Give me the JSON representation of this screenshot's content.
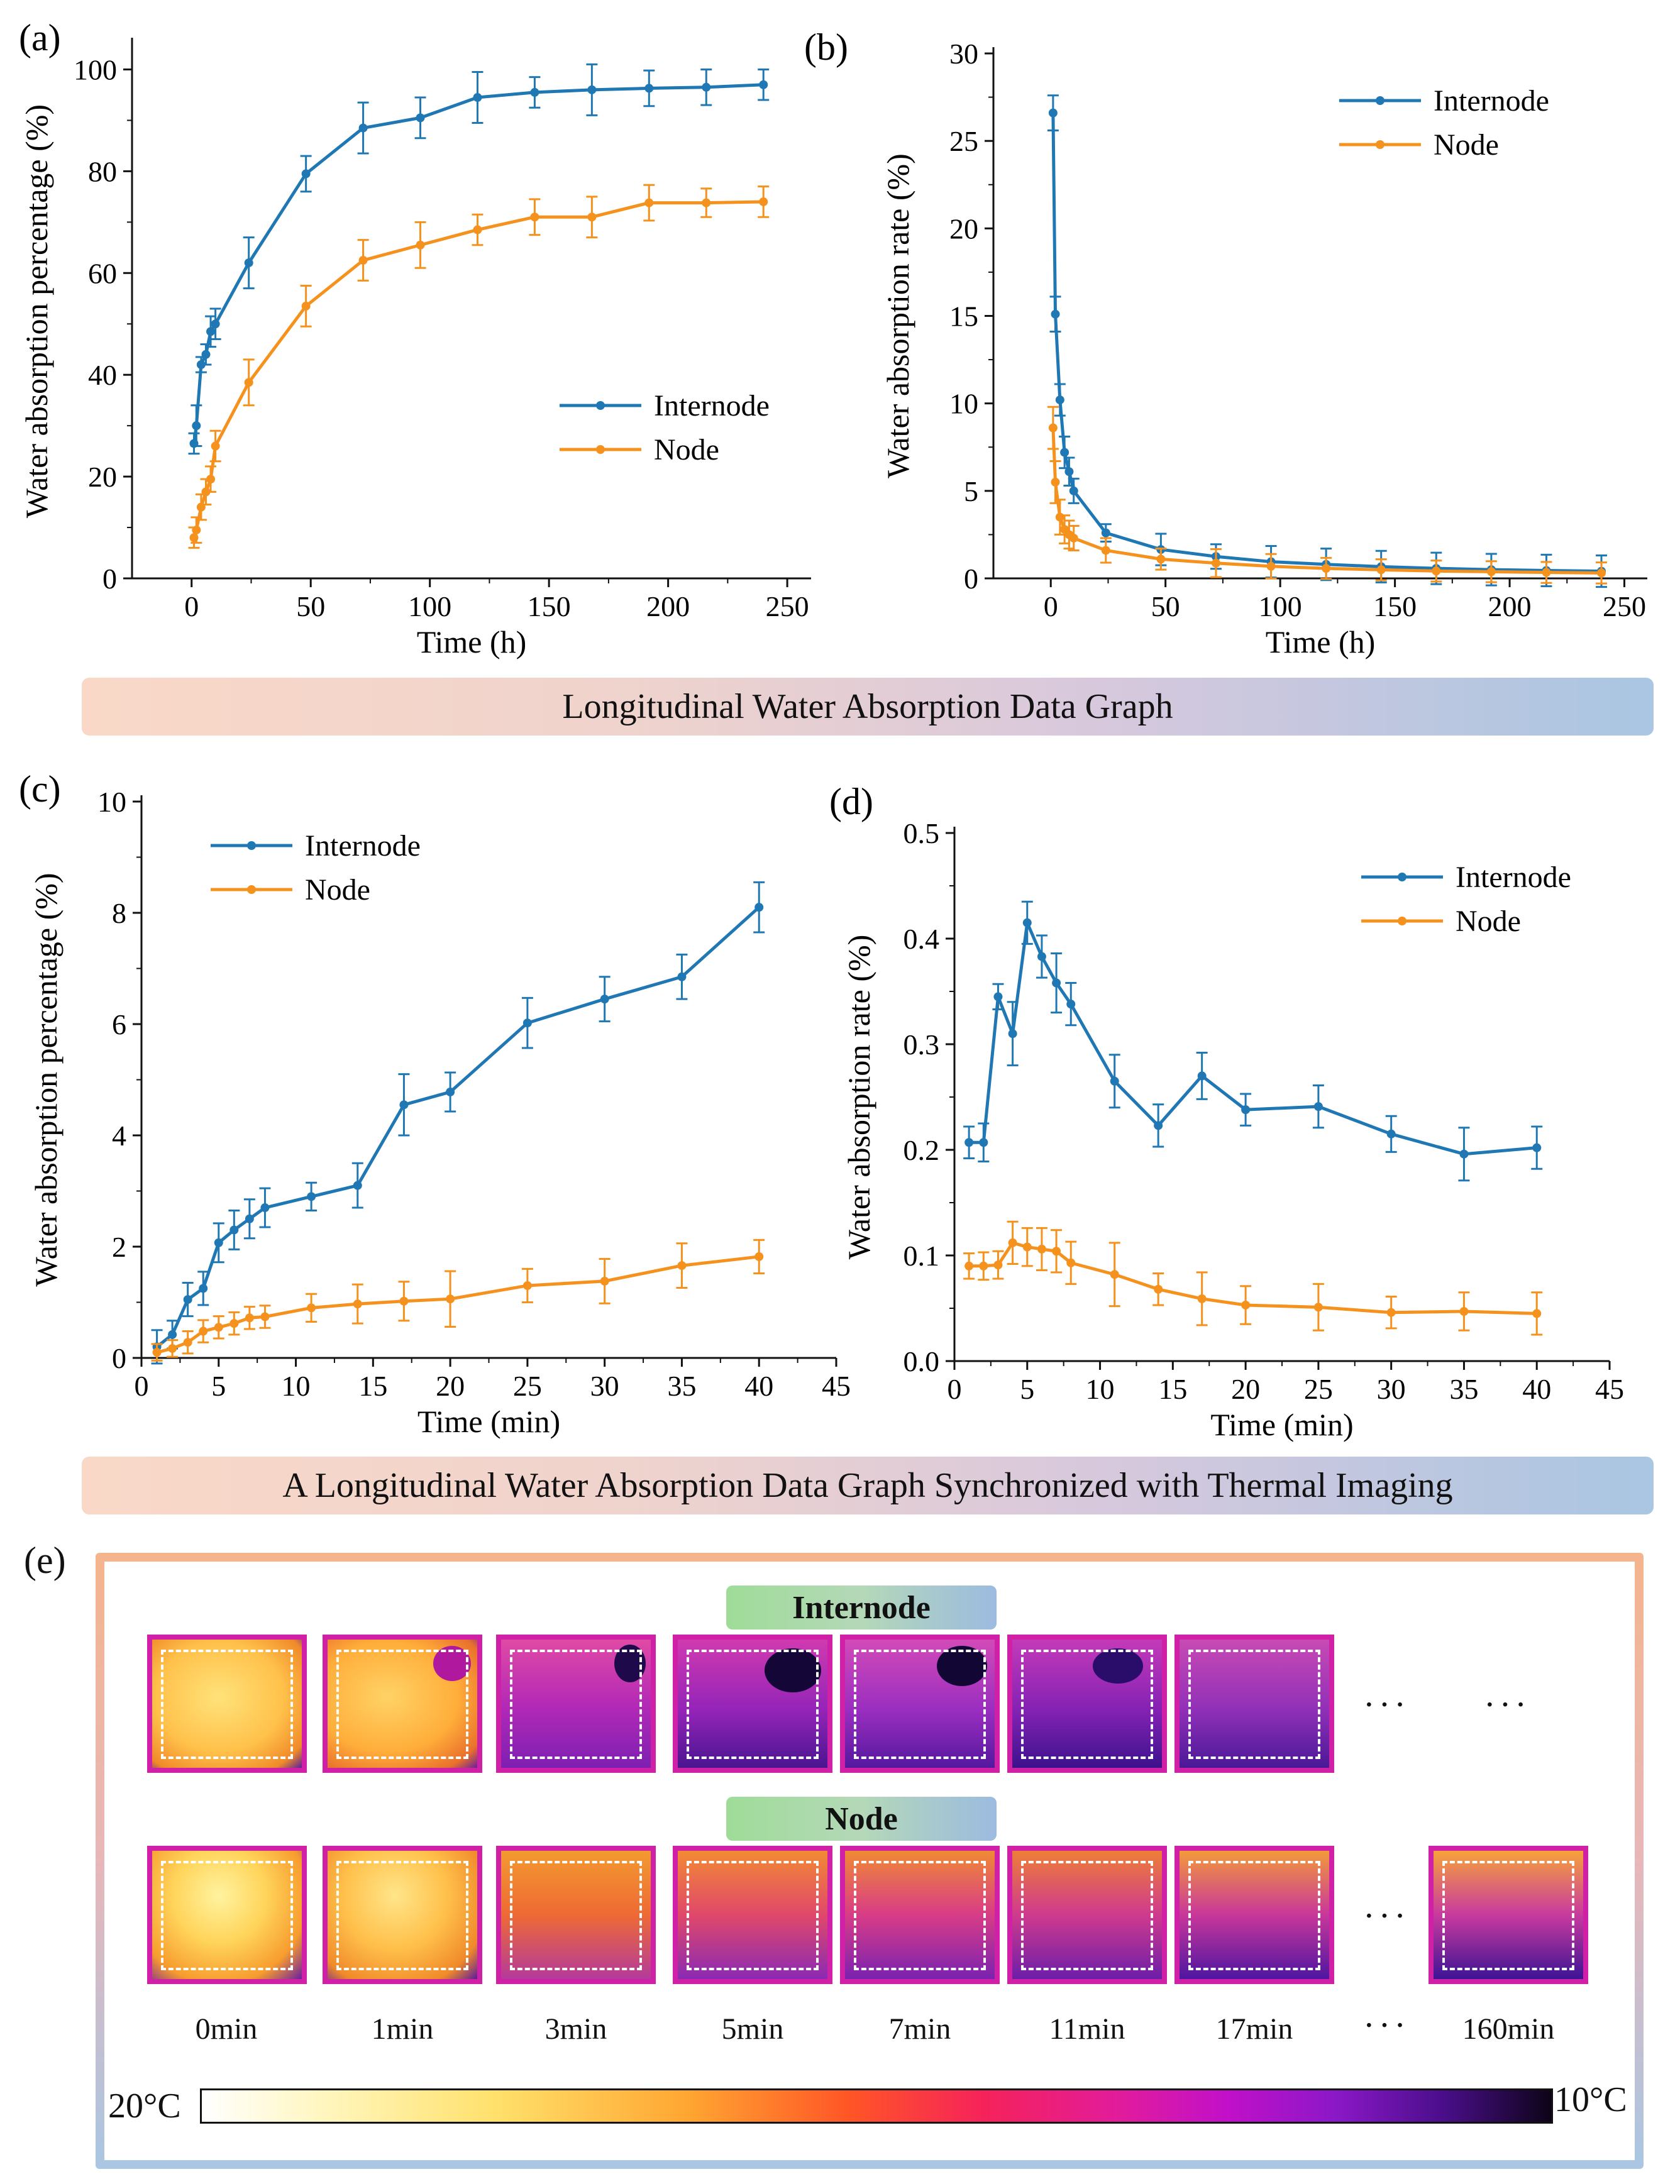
{
  "colors": {
    "internode": "#1f78b4",
    "node": "#f5921e"
  },
  "banners": {
    "top": "Longitudinal Water Absorption Data Graph",
    "middle": "A Longitudinal Water Absorption Data Graph Synchronized with Thermal Imaging"
  },
  "chart_data": [
    {
      "panel": "(a)",
      "type": "line",
      "xlabel": "Time (h)",
      "ylabel": "Water absorption percentage (%)",
      "xlim": [
        -25,
        260
      ],
      "ylim": [
        0,
        105
      ],
      "xticks": [
        0,
        50,
        100,
        150,
        200,
        250
      ],
      "yticks": [
        0,
        20,
        40,
        60,
        80,
        100
      ],
      "legend": "bottom-right",
      "series": [
        {
          "name": "Internode",
          "x": [
            1,
            2,
            4,
            6,
            8,
            10,
            24,
            48,
            72,
            96,
            120,
            144,
            168,
            192,
            216,
            240
          ],
          "y": [
            26.5,
            30,
            42,
            44,
            48.5,
            50,
            62,
            79.5,
            88.5,
            90.5,
            94.5,
            95.5,
            96,
            96.3,
            96.5,
            97
          ],
          "err": [
            2,
            4,
            1.5,
            2,
            3,
            3,
            5,
            3.5,
            5,
            4,
            5,
            3,
            5,
            3.5,
            3.5,
            3
          ]
        },
        {
          "name": "Node",
          "x": [
            1,
            2,
            4,
            6,
            8,
            10,
            24,
            48,
            72,
            96,
            120,
            144,
            168,
            192,
            216,
            240
          ],
          "y": [
            8,
            9.5,
            14,
            17,
            19.5,
            26,
            38.5,
            53.5,
            62.5,
            65.5,
            68.5,
            71,
            71,
            73.8,
            73.8,
            74
          ],
          "err": [
            2,
            2.5,
            2.5,
            2.5,
            2.5,
            3,
            4.5,
            4,
            4,
            4.5,
            3,
            3.5,
            4,
            3.5,
            2.8,
            3
          ]
        }
      ]
    },
    {
      "panel": "(b)",
      "type": "line",
      "xlabel": "Time (h)",
      "ylabel": "Water absorption rate (%)",
      "xlim": [
        -25,
        260
      ],
      "ylim": [
        0,
        30
      ],
      "xticks": [
        0,
        50,
        100,
        150,
        200,
        250
      ],
      "yticks": [
        0,
        5,
        10,
        15,
        20,
        25,
        30
      ],
      "legend": "top-right",
      "series": [
        {
          "name": "Internode",
          "x": [
            1,
            2,
            4,
            6,
            8,
            10,
            24,
            48,
            72,
            96,
            120,
            144,
            168,
            192,
            216,
            240
          ],
          "y": [
            26.6,
            15.1,
            10.2,
            7.2,
            6.1,
            5,
            2.6,
            1.65,
            1.25,
            0.95,
            0.8,
            0.67,
            0.57,
            0.5,
            0.45,
            0.41
          ],
          "err": [
            1,
            1,
            0.9,
            0.9,
            0.8,
            0.7,
            0.5,
            0.9,
            0.7,
            0.9,
            0.9,
            0.9,
            0.9,
            0.9,
            0.9,
            0.9
          ]
        },
        {
          "name": "Node",
          "x": [
            1,
            2,
            4,
            6,
            8,
            10,
            24,
            48,
            72,
            96,
            120,
            144,
            168,
            192,
            216,
            240
          ],
          "y": [
            8.6,
            5.5,
            3.5,
            2.8,
            2.5,
            2.3,
            1.6,
            1.1,
            0.87,
            0.69,
            0.57,
            0.49,
            0.42,
            0.38,
            0.34,
            0.31
          ],
          "err": [
            1.2,
            1.2,
            1,
            0.8,
            0.8,
            0.7,
            0.7,
            0.6,
            0.8,
            0.7,
            0.6,
            0.6,
            0.6,
            0.6,
            0.6,
            0.6
          ]
        }
      ]
    },
    {
      "panel": "(c)",
      "type": "line",
      "xlabel": "Time (min)",
      "ylabel": "Water absorption percentage (%)",
      "xlim": [
        0,
        45
      ],
      "ylim": [
        0,
        10
      ],
      "xticks": [
        0,
        5,
        10,
        15,
        20,
        25,
        30,
        35,
        40,
        45
      ],
      "yticks": [
        0,
        2,
        4,
        6,
        8,
        10
      ],
      "legend": "top-left",
      "series": [
        {
          "name": "Internode",
          "x": [
            1,
            2,
            3,
            4,
            5,
            6,
            7,
            8,
            11,
            14,
            17,
            20,
            25,
            30,
            35,
            40
          ],
          "y": [
            0.2,
            0.42,
            1.05,
            1.25,
            2.07,
            2.3,
            2.5,
            2.7,
            2.9,
            3.1,
            4.55,
            4.78,
            6.02,
            6.45,
            6.85,
            8.1
          ],
          "err": [
            0.3,
            0.25,
            0.3,
            0.3,
            0.35,
            0.35,
            0.35,
            0.35,
            0.25,
            0.4,
            0.55,
            0.35,
            0.45,
            0.4,
            0.4,
            0.45
          ]
        },
        {
          "name": "Node",
          "x": [
            1,
            2,
            3,
            4,
            5,
            6,
            7,
            8,
            11,
            14,
            17,
            20,
            25,
            30,
            35,
            40
          ],
          "y": [
            0.1,
            0.17,
            0.28,
            0.48,
            0.55,
            0.62,
            0.72,
            0.74,
            0.9,
            0.97,
            1.02,
            1.06,
            1.3,
            1.38,
            1.66,
            1.82
          ],
          "err": [
            0.15,
            0.15,
            0.2,
            0.2,
            0.2,
            0.2,
            0.2,
            0.2,
            0.25,
            0.35,
            0.35,
            0.5,
            0.3,
            0.4,
            0.4,
            0.3
          ]
        }
      ]
    },
    {
      "panel": "(d)",
      "type": "line",
      "xlabel": "Time (min)",
      "ylabel": "Water absorption rate (%)",
      "xlim": [
        0,
        45
      ],
      "ylim": [
        0,
        0.5
      ],
      "xticks": [
        0,
        5,
        10,
        15,
        20,
        25,
        30,
        35,
        40,
        45
      ],
      "yticks": [
        0.0,
        0.1,
        0.2,
        0.3,
        0.4,
        0.5
      ],
      "ytick_labels": [
        "0.0",
        "0.1",
        "0.2",
        "0.3",
        "0.4",
        "0.5"
      ],
      "legend": "top-right",
      "series": [
        {
          "name": "Internode",
          "x": [
            1,
            2,
            3,
            4,
            5,
            6,
            7,
            8,
            11,
            14,
            17,
            20,
            25,
            30,
            35,
            40
          ],
          "y": [
            0.207,
            0.207,
            0.345,
            0.31,
            0.415,
            0.383,
            0.358,
            0.338,
            0.265,
            0.223,
            0.27,
            0.238,
            0.241,
            0.215,
            0.196,
            0.202
          ],
          "err": [
            0.015,
            0.018,
            0.012,
            0.03,
            0.02,
            0.02,
            0.028,
            0.02,
            0.025,
            0.02,
            0.022,
            0.015,
            0.02,
            0.017,
            0.025,
            0.02
          ]
        },
        {
          "name": "Node",
          "x": [
            1,
            2,
            3,
            4,
            5,
            6,
            7,
            8,
            11,
            14,
            17,
            20,
            25,
            30,
            35,
            40
          ],
          "y": [
            0.09,
            0.09,
            0.091,
            0.112,
            0.108,
            0.106,
            0.104,
            0.093,
            0.082,
            0.068,
            0.059,
            0.053,
            0.051,
            0.046,
            0.047,
            0.045
          ],
          "err": [
            0.012,
            0.013,
            0.013,
            0.02,
            0.018,
            0.02,
            0.02,
            0.02,
            0.03,
            0.015,
            0.025,
            0.018,
            0.022,
            0.015,
            0.018,
            0.02
          ]
        }
      ]
    }
  ],
  "thermal": {
    "panel": "(e)",
    "internode_label": "Internode",
    "node_label": "Node",
    "ellipsis": "···",
    "time_labels": [
      "0min",
      "1min",
      "3min",
      "5min",
      "7min",
      "11min",
      "17min",
      "160min"
    ],
    "scale_max": "20°C",
    "scale_min": "10°C"
  }
}
